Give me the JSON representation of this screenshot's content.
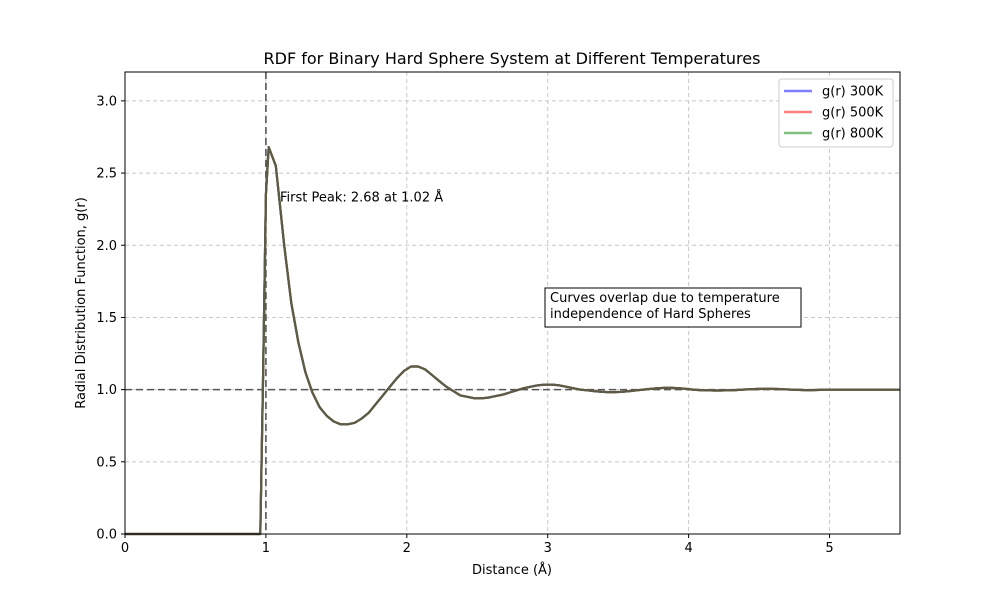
{
  "chart_data": {
    "type": "line",
    "title": "RDF for Binary Hard Sphere System at Different Temperatures",
    "xlabel": "Distance (Å)",
    "ylabel": "Radial Distribution Function, g(r)",
    "xlim": [
      0,
      5.5
    ],
    "ylim": [
      0,
      3.2
    ],
    "xticks": [
      0,
      1,
      2,
      3,
      4,
      5
    ],
    "xtick_labels": [
      "0",
      "1",
      "2",
      "3",
      "4",
      "5"
    ],
    "yticks": [
      0.0,
      0.5,
      1.0,
      1.5,
      2.0,
      2.5,
      3.0
    ],
    "ytick_labels": [
      "0.0",
      "0.5",
      "1.0",
      "1.5",
      "2.0",
      "2.5",
      "3.0"
    ],
    "grid": true,
    "legend_position": "upper-right",
    "combined_color": "#5e5a45",
    "reference_lines": {
      "horizontal_y": 1.0,
      "vertical_x": 1.0,
      "color": "#555555"
    },
    "x": [
      0,
      0.96,
      0.98,
      1.0,
      1.02,
      1.07,
      1.13,
      1.18,
      1.23,
      1.28,
      1.33,
      1.38,
      1.43,
      1.48,
      1.53,
      1.58,
      1.63,
      1.68,
      1.73,
      1.78,
      1.83,
      1.88,
      1.93,
      1.98,
      2.03,
      2.08,
      2.13,
      2.18,
      2.23,
      2.28,
      2.33,
      2.38,
      2.43,
      2.48,
      2.53,
      2.58,
      2.63,
      2.68,
      2.73,
      2.78,
      2.83,
      2.88,
      2.93,
      2.98,
      3.03,
      3.08,
      3.13,
      3.18,
      3.23,
      3.28,
      3.33,
      3.38,
      3.43,
      3.48,
      3.53,
      3.58,
      3.63,
      3.68,
      3.73,
      3.78,
      3.83,
      3.88,
      3.93,
      3.98,
      4.03,
      4.08,
      4.13,
      4.18,
      4.23,
      4.28,
      4.33,
      4.38,
      4.43,
      4.48,
      4.53,
      4.58,
      4.63,
      4.68,
      4.73,
      4.78,
      4.83,
      4.88,
      4.93,
      4.98,
      5.03,
      5.08,
      5.13,
      5.18,
      5.23,
      5.28,
      5.33,
      5.38,
      5.43,
      5.5
    ],
    "series": [
      {
        "name": "g(r) 300K",
        "color": "#7f7fff"
      },
      {
        "name": "g(r) 500K",
        "color": "#ff7f7f"
      },
      {
        "name": "g(r) 800K",
        "color": "#7fbf7f"
      }
    ],
    "values": [
      0,
      0,
      1.1,
      2.35,
      2.68,
      2.55,
      2.0,
      1.6,
      1.33,
      1.12,
      0.98,
      0.88,
      0.82,
      0.78,
      0.76,
      0.76,
      0.77,
      0.8,
      0.84,
      0.9,
      0.96,
      1.02,
      1.08,
      1.13,
      1.16,
      1.16,
      1.14,
      1.1,
      1.06,
      1.02,
      0.99,
      0.96,
      0.95,
      0.94,
      0.94,
      0.945,
      0.955,
      0.965,
      0.98,
      0.995,
      1.01,
      1.02,
      1.03,
      1.035,
      1.035,
      1.03,
      1.02,
      1.01,
      1.0,
      0.995,
      0.99,
      0.985,
      0.983,
      0.983,
      0.985,
      0.99,
      0.995,
      1.0,
      1.005,
      1.01,
      1.012,
      1.012,
      1.01,
      1.005,
      1.0,
      0.997,
      0.995,
      0.994,
      0.994,
      0.995,
      0.997,
      1.0,
      1.002,
      1.004,
      1.005,
      1.005,
      1.004,
      1.002,
      1.0,
      0.998,
      0.997,
      0.997,
      0.998,
      1.0,
      1.0,
      1.0,
      1.0,
      1.0,
      1.0,
      1.0,
      1.0,
      1.0,
      1.0,
      1.0
    ],
    "annotations": [
      {
        "text": "First Peak: 2.68 at 1.02 Å",
        "x": 1.1,
        "y": 2.33
      },
      {
        "text_lines": [
          "Curves overlap due to temperature",
          "independence of Hard Spheres"
        ],
        "x": 3.0,
        "y": 1.55
      }
    ]
  }
}
